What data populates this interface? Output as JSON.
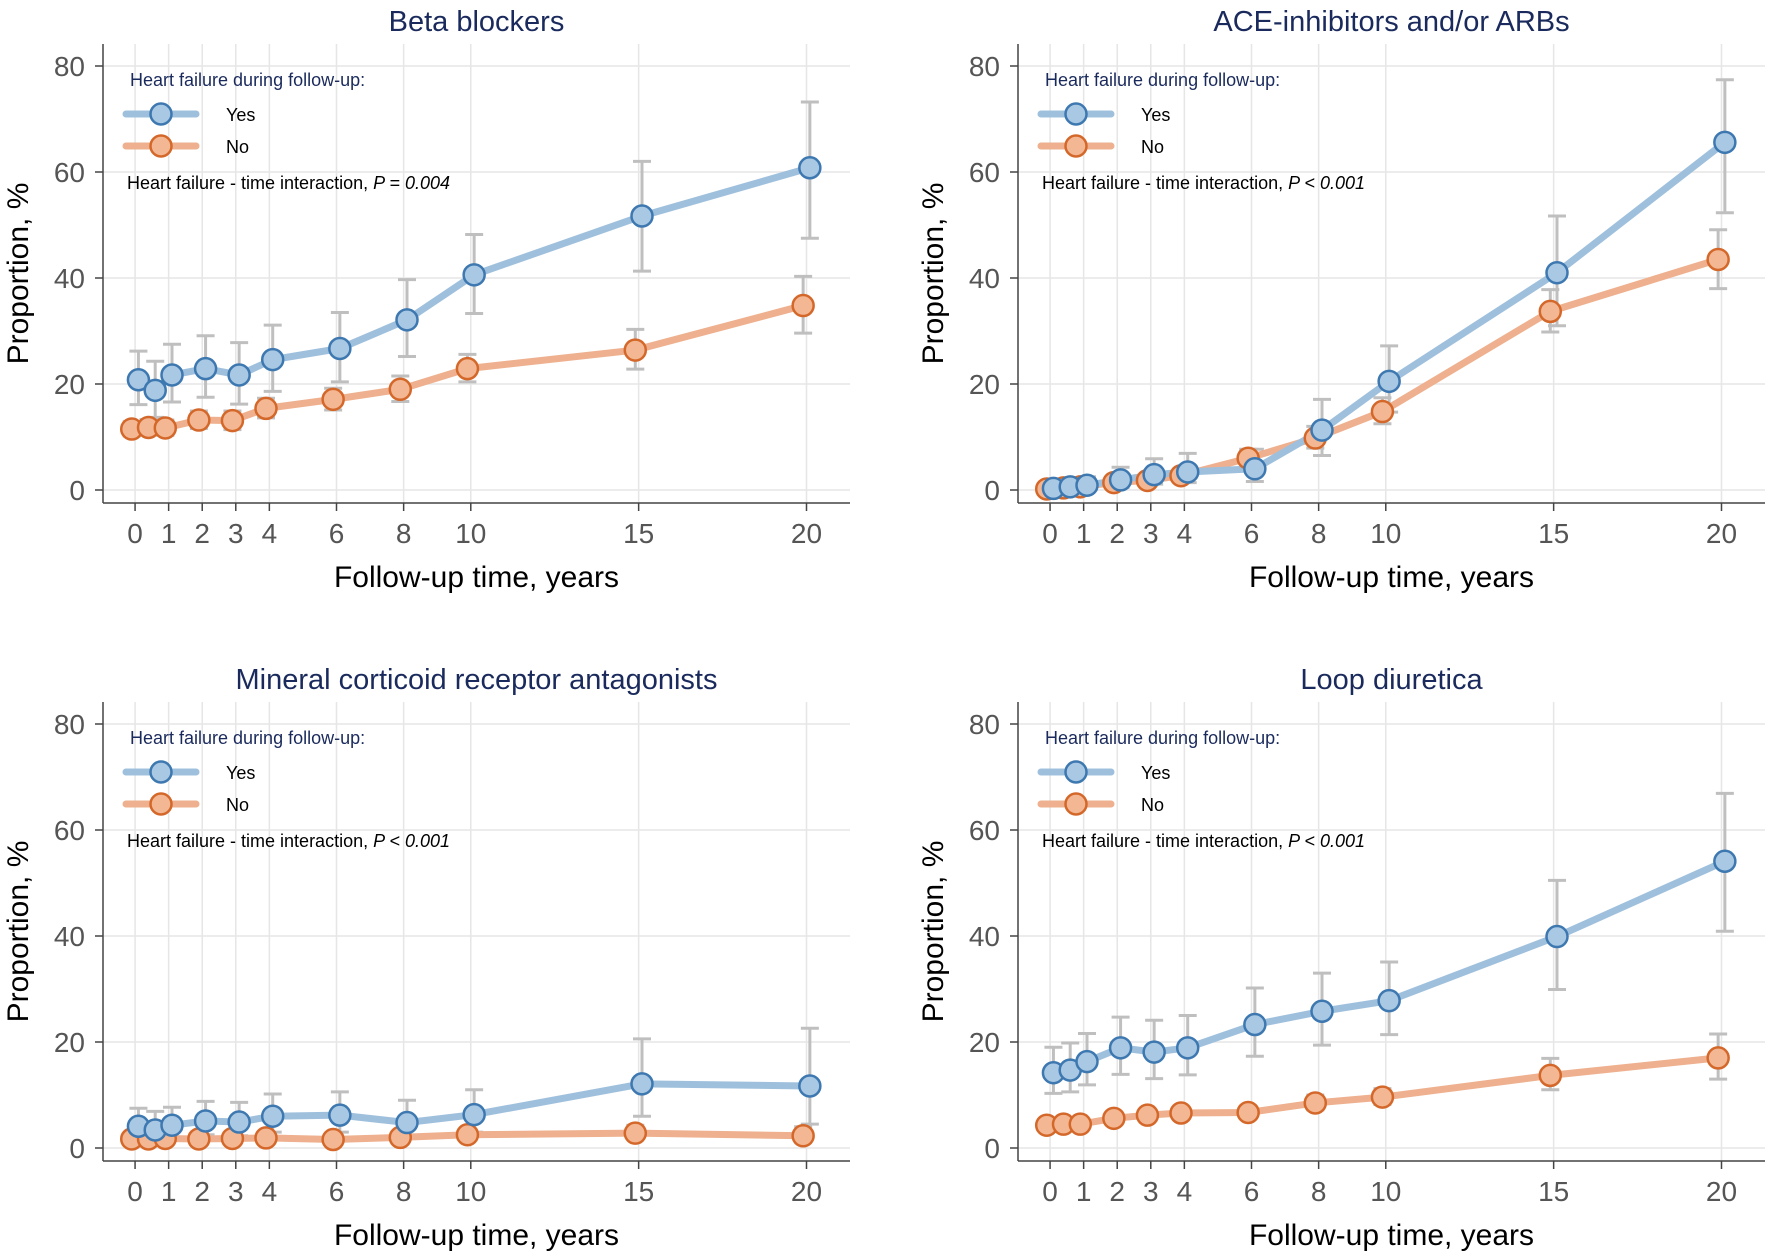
{
  "figure": {
    "x_ticks": [
      0,
      1,
      2,
      3,
      4,
      6,
      8,
      10,
      15,
      20
    ],
    "y_ticks": [
      0,
      20,
      40,
      60,
      80
    ]
  },
  "colors": {
    "yes_line": "#9fc0dd",
    "yes_fill": "#a9c8e3",
    "yes_edge": "#3e78b0",
    "no_line": "#eeb08e",
    "no_fill": "#f4b793",
    "no_edge": "#d4682a",
    "ci": "#bfbfbf",
    "grid": "#e6e6e6",
    "title": "#1a2a5c"
  },
  "chart_data": [
    {
      "type": "line",
      "title": "Beta blockers",
      "xlabel": "Follow-up time, years",
      "ylabel": "Proportion, %",
      "xlim": [
        -0.3,
        20.7
      ],
      "ylim": [
        0,
        80
      ],
      "grid": true,
      "legend_title": "Heart failure during follow-up:",
      "legend_placement": "top-left",
      "annotation": "Heart failure - time interaction,",
      "annotation_p": "P = 0.004",
      "series": [
        {
          "name": "Yes",
          "x": [
            0.1,
            0.6,
            1.1,
            2.1,
            3.1,
            4.1,
            6.1,
            8.1,
            10.1,
            15.1,
            20.1
          ],
          "y": [
            20.8,
            18.8,
            21.7,
            22.9,
            21.7,
            24.6,
            26.7,
            32.1,
            40.6,
            51.7,
            60.8
          ],
          "lower": [
            16.1,
            13.7,
            16.6,
            17.5,
            16.2,
            18.6,
            20.4,
            25.2,
            33.3,
            41.3,
            47.5
          ],
          "upper": [
            26.2,
            24.3,
            27.5,
            29.1,
            27.8,
            31.1,
            33.5,
            39.7,
            48.2,
            62.0,
            73.2
          ]
        },
        {
          "name": "No",
          "x": [
            -0.1,
            0.4,
            0.9,
            1.9,
            2.9,
            3.9,
            5.9,
            7.9,
            9.9,
            14.9,
            19.9
          ],
          "y": [
            11.5,
            11.8,
            11.7,
            13.2,
            13.1,
            15.4,
            17.1,
            19.0,
            22.9,
            26.4,
            34.8
          ],
          "lower": [
            10.2,
            10.4,
            10.3,
            11.6,
            11.4,
            13.6,
            15.1,
            16.7,
            20.4,
            22.8,
            29.6
          ],
          "upper": [
            12.9,
            13.3,
            13.2,
            14.9,
            14.9,
            17.3,
            19.2,
            21.5,
            25.6,
            30.3,
            40.3
          ]
        }
      ]
    },
    {
      "type": "line",
      "title": "ACE-inhibitors and/or ARBs",
      "xlabel": "Follow-up time, years",
      "ylabel": "Proportion, %",
      "xlim": [
        -0.3,
        20.7
      ],
      "ylim": [
        0,
        80
      ],
      "grid": true,
      "legend_title": "Heart failure during follow-up:",
      "legend_placement": "top-left",
      "annotation": "Heart failure - time interaction,",
      "annotation_p": "P < 0.001",
      "series": [
        {
          "name": "Yes",
          "x": [
            0.1,
            0.6,
            1.1,
            2.1,
            3.1,
            4.1,
            6.1,
            8.1,
            10.1,
            15.1,
            20.1
          ],
          "y": [
            0.3,
            0.6,
            0.9,
            1.9,
            2.9,
            3.4,
            4.0,
            11.3,
            20.5,
            41.0,
            65.6
          ],
          "lower": [
            0.0,
            0.0,
            0.1,
            0.5,
            1.1,
            1.4,
            1.6,
            6.5,
            14.7,
            31.0,
            52.3
          ],
          "upper": [
            1.2,
            1.8,
            2.5,
            4.3,
            5.9,
            6.9,
            7.7,
            17.1,
            27.2,
            51.7,
            77.4
          ]
        },
        {
          "name": "No",
          "x": [
            -0.1,
            0.4,
            0.9,
            1.9,
            2.9,
            3.9,
            5.9,
            7.9,
            9.9,
            14.9,
            19.9
          ],
          "y": [
            0.2,
            0.4,
            0.6,
            1.4,
            1.8,
            2.7,
            6.0,
            9.8,
            14.8,
            33.7,
            43.5
          ],
          "lower": [
            0.0,
            0.1,
            0.2,
            0.8,
            1.1,
            1.8,
            4.6,
            7.9,
            12.5,
            29.8,
            38.0
          ],
          "upper": [
            0.6,
            0.9,
            1.2,
            2.2,
            2.7,
            3.8,
            7.7,
            12.0,
            17.4,
            37.8,
            49.1
          ]
        }
      ]
    },
    {
      "type": "line",
      "title": "Mineral corticoid receptor antagonists",
      "xlabel": "Follow-up time, years",
      "ylabel": "Proportion, %",
      "xlim": [
        -0.3,
        20.7
      ],
      "ylim": [
        0,
        80
      ],
      "grid": true,
      "legend_title": "Heart failure during follow-up:",
      "legend_placement": "top-left",
      "annotation": "Heart failure - time interaction,",
      "annotation_p": "P < 0.001",
      "series": [
        {
          "name": "Yes",
          "x": [
            0.1,
            0.6,
            1.1,
            2.1,
            3.1,
            4.1,
            6.1,
            8.1,
            10.1,
            15.1,
            20.1
          ],
          "y": [
            4.1,
            3.4,
            4.3,
            5.1,
            4.9,
            6.0,
            6.2,
            4.8,
            6.3,
            12.1,
            11.7
          ],
          "lower": [
            1.8,
            1.4,
            2.0,
            2.5,
            2.3,
            3.0,
            3.0,
            2.0,
            3.0,
            6.0,
            4.5
          ],
          "upper": [
            7.5,
            6.9,
            7.7,
            8.8,
            8.6,
            10.2,
            10.6,
            9.0,
            11.0,
            20.6,
            22.6
          ]
        },
        {
          "name": "No",
          "x": [
            -0.1,
            0.4,
            0.9,
            1.9,
            2.9,
            3.9,
            5.9,
            7.9,
            9.9,
            14.9,
            19.9
          ],
          "y": [
            1.7,
            1.7,
            1.8,
            1.7,
            1.8,
            1.9,
            1.6,
            2.0,
            2.5,
            2.8,
            2.3
          ],
          "lower": [
            1.2,
            1.2,
            1.3,
            1.2,
            1.3,
            1.4,
            1.0,
            1.3,
            1.8,
            1.7,
            1.2
          ],
          "upper": [
            2.3,
            2.3,
            2.4,
            2.3,
            2.4,
            2.6,
            2.3,
            2.8,
            3.4,
            4.3,
            4.0
          ]
        }
      ]
    },
    {
      "type": "line",
      "title": "Loop diuretica",
      "xlabel": "Follow-up time, years",
      "ylabel": "Proportion, %",
      "xlim": [
        -0.3,
        20.7
      ],
      "ylim": [
        0,
        80
      ],
      "grid": true,
      "legend_title": "Heart failure during follow-up:",
      "legend_placement": "top-left",
      "annotation": "Heart failure - time interaction,",
      "annotation_p": "P < 0.001",
      "series": [
        {
          "name": "Yes",
          "x": [
            0.1,
            0.6,
            1.1,
            2.1,
            3.1,
            4.1,
            6.1,
            8.1,
            10.1,
            15.1,
            20.1
          ],
          "y": [
            14.2,
            14.7,
            16.3,
            18.9,
            18.1,
            18.9,
            23.3,
            25.8,
            27.8,
            39.9,
            54.1
          ],
          "lower": [
            10.3,
            10.6,
            11.9,
            13.9,
            13.1,
            13.8,
            17.3,
            19.4,
            21.4,
            29.9,
            40.9
          ],
          "upper": [
            19.0,
            19.8,
            21.6,
            24.7,
            24.1,
            25.0,
            30.2,
            33.0,
            35.1,
            50.5,
            66.9
          ]
        },
        {
          "name": "No",
          "x": [
            -0.1,
            0.4,
            0.9,
            1.9,
            2.9,
            3.9,
            5.9,
            7.9,
            9.9,
            14.9,
            19.9
          ],
          "y": [
            4.3,
            4.5,
            4.5,
            5.6,
            6.2,
            6.6,
            6.7,
            8.5,
            9.6,
            13.7,
            17.0
          ],
          "lower": [
            3.7,
            3.8,
            3.8,
            4.8,
            5.3,
            5.7,
            5.7,
            7.2,
            8.2,
            11.0,
            13.0
          ],
          "upper": [
            5.1,
            5.3,
            5.3,
            6.5,
            7.2,
            7.6,
            7.8,
            10.0,
            11.2,
            16.9,
            21.5
          ]
        }
      ]
    }
  ]
}
